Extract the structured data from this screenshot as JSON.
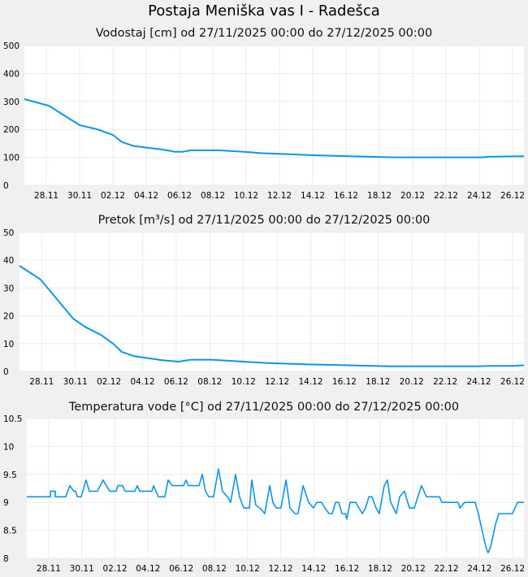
{
  "title": "Postaja Meniška vas I - Radešca",
  "colors": {
    "line": "#0a96f0",
    "grid": "#ebebeb",
    "plot_bg": "#ffffff",
    "page_bg": "#f0f0f0"
  },
  "chart_data": [
    {
      "type": "line",
      "title": "Vodostaj [cm] od 27/11/2025 00:00 do 27/12/2025 00:00",
      "ylabel": "Vodostaj [cm]",
      "xlim_days": [
        0,
        30
      ],
      "ylim": [
        0,
        500
      ],
      "yticks": [
        "0",
        "100",
        "200",
        "300",
        "400",
        "500"
      ],
      "ytick_values": [
        0,
        100,
        200,
        300,
        400,
        500
      ],
      "xtick_days": [
        1.32,
        3.32,
        5.32,
        7.32,
        9.32,
        11.32,
        13.32,
        15.32,
        17.32,
        19.32,
        21.32,
        23.32,
        25.32,
        27.32,
        29.32
      ],
      "xticks": [
        "28.11",
        "30.11",
        "02.12",
        "04.12",
        "06.12",
        "08.12",
        "10.12",
        "12.12",
        "14.12",
        "16.12",
        "18.12",
        "20.12",
        "22.12",
        "24.12",
        "26.12"
      ],
      "grid": true,
      "points": [
        [
          0,
          308
        ],
        [
          1.46,
          285
        ],
        [
          3.32,
          215
        ],
        [
          4.39,
          200
        ],
        [
          5.32,
          180
        ],
        [
          5.85,
          155
        ],
        [
          6.59,
          140
        ],
        [
          8.29,
          128
        ],
        [
          9.02,
          120
        ],
        [
          9.51,
          120
        ],
        [
          10,
          125
        ],
        [
          11.7,
          125
        ],
        [
          13.17,
          120
        ],
        [
          14.15,
          115
        ],
        [
          17.07,
          108
        ],
        [
          19.51,
          104
        ],
        [
          22.2,
          100
        ],
        [
          27.56,
          100
        ],
        [
          27.8,
          102
        ],
        [
          30,
          104
        ]
      ]
    },
    {
      "type": "line",
      "title": "Pretok [m³/s] od 27/11/2025 00:00 do 27/12/2025 00:00",
      "ylabel": "Pretok [m³/s]",
      "xlim_days": [
        0,
        30
      ],
      "ylim": [
        0,
        50
      ],
      "yticks": [
        "0",
        "10",
        "20",
        "30",
        "40",
        "50"
      ],
      "ytick_values": [
        0,
        10,
        20,
        30,
        40,
        50
      ],
      "xtick_days": [
        1.32,
        3.32,
        5.32,
        7.32,
        9.32,
        11.32,
        13.32,
        15.32,
        17.32,
        19.32,
        21.32,
        23.32,
        25.32,
        27.32,
        29.32
      ],
      "xticks": [
        "28.11",
        "30.11",
        "02.12",
        "04.12",
        "06.12",
        "08.12",
        "10.12",
        "12.12",
        "14.12",
        "16.12",
        "18.12",
        "20.12",
        "22.12",
        "24.12",
        "26.12"
      ],
      "grid": true,
      "points": [
        [
          0,
          38
        ],
        [
          1.26,
          33
        ],
        [
          3.19,
          19
        ],
        [
          3.91,
          16
        ],
        [
          4.88,
          13
        ],
        [
          5.56,
          10
        ],
        [
          6.09,
          7
        ],
        [
          6.81,
          5.5
        ],
        [
          8.5,
          4
        ],
        [
          9.47,
          3.5
        ],
        [
          10.19,
          4.2
        ],
        [
          11.4,
          4.2
        ],
        [
          13.33,
          3.5
        ],
        [
          14.78,
          3
        ],
        [
          17.2,
          2.5
        ],
        [
          19.61,
          2.2
        ],
        [
          22.03,
          1.8
        ],
        [
          27.34,
          1.8
        ],
        [
          27.83,
          2
        ],
        [
          29.28,
          2
        ],
        [
          30,
          2.2
        ]
      ]
    },
    {
      "type": "line",
      "title": "Temperatura vode [°C] od 27/11/2025 00:00 do 27/12/2025 00:00",
      "ylabel": "Temperatura vode [°C]",
      "xlim_days": [
        0,
        30
      ],
      "ylim": [
        8,
        10.5
      ],
      "yticks": [
        "8",
        "8.5",
        "9",
        "9.5",
        "10",
        "10.5"
      ],
      "ytick_values": [
        8,
        8.5,
        9,
        9.5,
        10,
        10.5
      ],
      "xtick_days": [
        1.32,
        3.32,
        5.32,
        7.32,
        9.32,
        11.32,
        13.32,
        15.32,
        17.32,
        19.32,
        21.32,
        23.32,
        25.32,
        27.32,
        29.32
      ],
      "xticks": [
        "28.11",
        "30.11",
        "02.12",
        "04.12",
        "06.12",
        "08.12",
        "10.12",
        "12.12",
        "14.12",
        "16.12",
        "18.12",
        "20.12",
        "22.12",
        "24.12",
        "26.12"
      ],
      "grid": true,
      "points": [
        [
          0,
          9.1
        ],
        [
          1.42,
          9.1
        ],
        [
          1.42,
          9.2
        ],
        [
          1.72,
          9.2
        ],
        [
          1.72,
          9.1
        ],
        [
          2.35,
          9.1
        ],
        [
          2.6,
          9.3
        ],
        [
          2.84,
          9.2
        ],
        [
          2.94,
          9.2
        ],
        [
          3.05,
          9.1
        ],
        [
          3.28,
          9.1
        ],
        [
          3.58,
          9.4
        ],
        [
          3.77,
          9.2
        ],
        [
          4.26,
          9.2
        ],
        [
          4.61,
          9.4
        ],
        [
          4.8,
          9.3
        ],
        [
          5.0,
          9.2
        ],
        [
          5.39,
          9.2
        ],
        [
          5.49,
          9.3
        ],
        [
          5.78,
          9.3
        ],
        [
          5.93,
          9.2
        ],
        [
          6.52,
          9.2
        ],
        [
          6.67,
          9.3
        ],
        [
          6.81,
          9.2
        ],
        [
          7.55,
          9.2
        ],
        [
          7.65,
          9.3
        ],
        [
          7.79,
          9.2
        ],
        [
          7.94,
          9.1
        ],
        [
          8.33,
          9.1
        ],
        [
          8.53,
          9.4
        ],
        [
          8.77,
          9.3
        ],
        [
          9.46,
          9.3
        ],
        [
          9.61,
          9.4
        ],
        [
          9.75,
          9.3
        ],
        [
          10.39,
          9.3
        ],
        [
          10.59,
          9.5
        ],
        [
          10.78,
          9.2
        ],
        [
          10.98,
          9.1
        ],
        [
          11.27,
          9.1
        ],
        [
          11.57,
          9.6
        ],
        [
          11.81,
          9.2
        ],
        [
          12.11,
          9.1
        ],
        [
          12.3,
          9.0
        ],
        [
          12.6,
          9.5
        ],
        [
          12.84,
          9.1
        ],
        [
          13.09,
          8.9
        ],
        [
          13.43,
          8.9
        ],
        [
          13.58,
          9.4
        ],
        [
          13.82,
          8.95
        ],
        [
          14.07,
          8.9
        ],
        [
          14.36,
          8.8
        ],
        [
          14.66,
          9.3
        ],
        [
          14.85,
          9.0
        ],
        [
          15.05,
          8.9
        ],
        [
          15.34,
          8.9
        ],
        [
          15.64,
          9.4
        ],
        [
          15.88,
          8.9
        ],
        [
          16.18,
          8.8
        ],
        [
          16.37,
          8.8
        ],
        [
          16.67,
          9.3
        ],
        [
          17.01,
          9.0
        ],
        [
          17.3,
          8.9
        ],
        [
          17.5,
          9.0
        ],
        [
          17.79,
          9.0
        ],
        [
          17.99,
          8.9
        ],
        [
          18.24,
          8.8
        ],
        [
          18.43,
          8.8
        ],
        [
          18.63,
          9.0
        ],
        [
          18.82,
          9.0
        ],
        [
          19.02,
          8.8
        ],
        [
          19.22,
          8.8
        ],
        [
          19.31,
          8.7
        ],
        [
          19.51,
          9.0
        ],
        [
          19.85,
          9.0
        ],
        [
          20.05,
          8.9
        ],
        [
          20.25,
          8.8
        ],
        [
          20.44,
          8.9
        ],
        [
          20.64,
          9.1
        ],
        [
          20.83,
          9.1
        ],
        [
          21.08,
          8.9
        ],
        [
          21.27,
          8.8
        ],
        [
          21.57,
          9.3
        ],
        [
          21.76,
          9.4
        ],
        [
          21.96,
          9.0
        ],
        [
          22.3,
          8.8
        ],
        [
          22.5,
          9.1
        ],
        [
          22.79,
          9.2
        ],
        [
          23.09,
          8.9
        ],
        [
          23.38,
          8.9
        ],
        [
          23.82,
          9.3
        ],
        [
          24.12,
          9.1
        ],
        [
          24.9,
          9.1
        ],
        [
          25.05,
          9.0
        ],
        [
          26.03,
          9.0
        ],
        [
          26.13,
          8.9
        ],
        [
          26.42,
          9.0
        ],
        [
          27.06,
          9.0
        ],
        [
          27.25,
          8.8
        ],
        [
          27.7,
          8.2
        ],
        [
          27.84,
          8.1
        ],
        [
          27.99,
          8.2
        ],
        [
          28.28,
          8.6
        ],
        [
          28.48,
          8.8
        ],
        [
          29.31,
          8.8
        ],
        [
          29.61,
          9.0
        ],
        [
          30,
          9.0
        ]
      ]
    }
  ]
}
